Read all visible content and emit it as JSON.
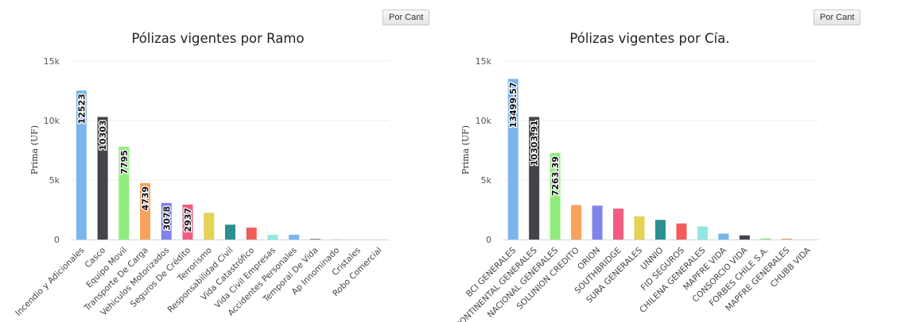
{
  "buttons": {
    "sort_left": "Por Cant",
    "sort_right": "Por Cant"
  },
  "chart_data": [
    {
      "type": "bar",
      "title": "Pólizas vigentes por Ramo",
      "ylabel": "Prima (UF)",
      "ylim": [
        0,
        15000
      ],
      "yticks": [
        "0",
        "5k",
        "10k",
        "15k"
      ],
      "grid": true,
      "categories": [
        "Incendio y Adicionales",
        "Casco",
        "Equipo Movil",
        "Transporte De Carga",
        "Vehiculos Motorizados",
        "Seguros De Crédito",
        "Terrorismo",
        "Responsabilidad Civil",
        "Vida Catastrófico",
        "Vida Civil Empresas",
        "Accidentes Personales",
        "Temporal De Vida",
        "Ap Innominado",
        "Cristales",
        "Robo Comercial"
      ],
      "values": [
        12523,
        10303,
        7795,
        4739,
        3078,
        2937,
        2250,
        1250,
        1000,
        400,
        400,
        40,
        20,
        10,
        5
      ],
      "data_labels": [
        "12523",
        "10303",
        "7795",
        "4739",
        "3078",
        "2937",
        null,
        null,
        null,
        null,
        null,
        null,
        null,
        null,
        null
      ],
      "colors": [
        "#7cb5ec",
        "#434348",
        "#90ed7d",
        "#f7a35c",
        "#8085e9",
        "#f15c80",
        "#e4d354",
        "#2b908f",
        "#f45b5b",
        "#91e8e1",
        "#7cb5ec",
        "#434348",
        "#90ed7d",
        "#f7a35c",
        "#8085e9"
      ]
    },
    {
      "type": "bar",
      "title": "Pólizas vigentes por Cía.",
      "ylabel": "Prima (UF)",
      "ylim": [
        0,
        15000
      ],
      "yticks": [
        "0",
        "5k",
        "10k",
        "15k"
      ],
      "grid": true,
      "categories": [
        "BCI GENERALES",
        "CONTINENTAL GENERALES",
        "NACIONAL GENERALES",
        "SOLUNION CREDITO",
        "ORION",
        "SOUTHBRIDGE",
        "SURA GENERALES",
        "UNNIO",
        "FID SEGUROS",
        "CHILENA GENERALES",
        "MAPFRE VIDA",
        "CONSORCIO VIDA",
        "FORBES CHILE S.A.",
        "MAPFRE GENERALES",
        "CHUBB VIDA"
      ],
      "values": [
        13499.57,
        10303.91,
        7263.39,
        2900,
        2850,
        2600,
        1950,
        1650,
        1350,
        1100,
        500,
        350,
        100,
        80,
        0
      ],
      "data_labels": [
        "13499.57",
        "10303.91",
        "7263.39",
        null,
        null,
        null,
        null,
        null,
        null,
        null,
        null,
        null,
        null,
        null,
        null
      ],
      "colors": [
        "#7cb5ec",
        "#434348",
        "#90ed7d",
        "#f7a35c",
        "#8085e9",
        "#f15c80",
        "#e4d354",
        "#2b908f",
        "#f45b5b",
        "#91e8e1",
        "#7cb5ec",
        "#434348",
        "#90ed7d",
        "#f7a35c",
        "#8085e9"
      ]
    }
  ]
}
